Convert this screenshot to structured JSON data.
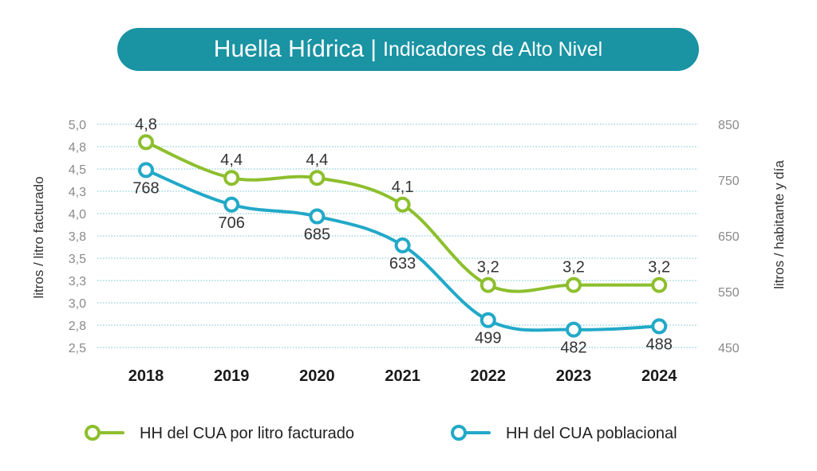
{
  "header": {
    "title": "Huella Hídrica",
    "separator": "|",
    "subtitle": "Indicadores de Alto Nivel"
  },
  "colors": {
    "title_bg": "#1a93a3",
    "series_green": "#8dbf2d",
    "series_blue": "#22a9c8",
    "grid": "#6fc3d3"
  },
  "chart_data": {
    "type": "line",
    "title": "Huella Hídrica | Indicadores de Alto Nivel",
    "x": [
      "2018",
      "2019",
      "2020",
      "2021",
      "2022",
      "2023",
      "2024"
    ],
    "left_axis": {
      "label": "litros / litro facturado",
      "ticks": [
        "5,0",
        "4,8",
        "4,5",
        "4,3",
        "4,0",
        "3,8",
        "3,5",
        "3,3",
        "3,0",
        "2,8",
        "2,5"
      ],
      "ylim": [
        2.5,
        5.0
      ]
    },
    "right_axis": {
      "label": "litros / habitante y día",
      "ticks": [
        "850",
        "750",
        "650",
        "550",
        "450"
      ],
      "ylim": [
        450,
        850
      ]
    },
    "grid": true,
    "legend_position": "bottom",
    "series": [
      {
        "name": "HH del CUA por litro facturado",
        "axis": "left",
        "color": "#8dbf2d",
        "values": [
          4.8,
          4.4,
          4.4,
          4.1,
          3.2,
          3.2,
          3.2
        ],
        "labels": [
          "4,8",
          "4,4",
          "4,4",
          "4,1",
          "3,2",
          "3,2",
          "3,2"
        ],
        "label_side": "above"
      },
      {
        "name": "HH del CUA poblacional",
        "axis": "right",
        "color": "#22a9c8",
        "values": [
          768,
          706,
          685,
          633,
          499,
          482,
          488
        ],
        "labels": [
          "768",
          "706",
          "685",
          "633",
          "499",
          "482",
          "488"
        ],
        "label_side": "below"
      }
    ]
  }
}
